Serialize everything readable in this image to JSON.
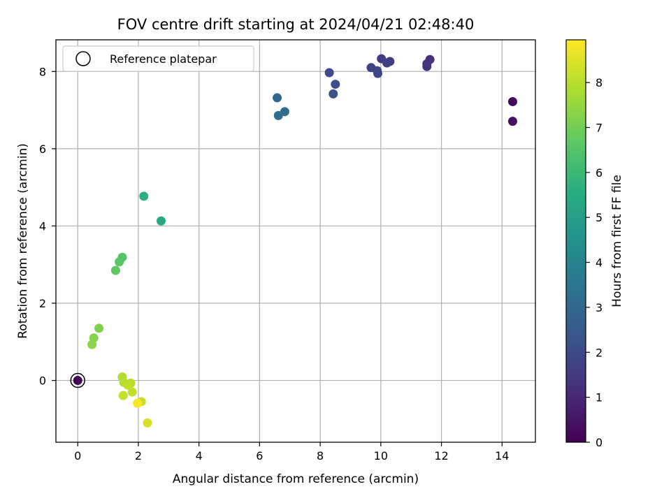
{
  "chart_data": {
    "type": "scatter",
    "title": "FOV centre drift starting at 2024/04/21 02:48:40",
    "xlabel": "Angular distance from reference (arcmin)",
    "ylabel": "Rotation from reference (arcmin)",
    "xlim": [
      -0.72,
      15.1
    ],
    "ylim": [
      -1.6,
      8.82
    ],
    "xticks": [
      0,
      2,
      4,
      6,
      8,
      10,
      12,
      14
    ],
    "yticks": [
      0,
      2,
      4,
      6,
      8
    ],
    "grid": true,
    "legend": {
      "position": "top-left",
      "entries": [
        "Reference platepar"
      ]
    },
    "reference_point": {
      "x": 0,
      "y": 0,
      "label": "Reference platepar"
    },
    "colorbar": {
      "label": "Hours from first FF file",
      "colormap": "viridis",
      "range": [
        0,
        8.95
      ],
      "ticks": [
        0,
        1,
        2,
        3,
        4,
        5,
        6,
        7,
        8
      ]
    },
    "points": [
      {
        "x": 0.0,
        "y": 0.0,
        "c": 0.0
      },
      {
        "x": 14.35,
        "y": 7.22,
        "c": 0.2
      },
      {
        "x": 14.35,
        "y": 6.71,
        "c": 0.4
      },
      {
        "x": 11.62,
        "y": 8.31,
        "c": 1.2
      },
      {
        "x": 11.52,
        "y": 8.2,
        "c": 1.3
      },
      {
        "x": 11.52,
        "y": 8.13,
        "c": 1.4
      },
      {
        "x": 10.02,
        "y": 8.33,
        "c": 1.6
      },
      {
        "x": 10.3,
        "y": 8.26,
        "c": 1.6
      },
      {
        "x": 10.2,
        "y": 8.22,
        "c": 1.7
      },
      {
        "x": 9.68,
        "y": 8.1,
        "c": 1.8
      },
      {
        "x": 9.88,
        "y": 8.02,
        "c": 1.9
      },
      {
        "x": 9.9,
        "y": 7.95,
        "c": 1.95
      },
      {
        "x": 8.3,
        "y": 7.97,
        "c": 2.1
      },
      {
        "x": 8.5,
        "y": 7.67,
        "c": 2.2
      },
      {
        "x": 8.43,
        "y": 7.42,
        "c": 2.3
      },
      {
        "x": 6.58,
        "y": 7.32,
        "c": 3.0
      },
      {
        "x": 6.83,
        "y": 6.96,
        "c": 3.1
      },
      {
        "x": 6.62,
        "y": 6.86,
        "c": 3.2
      },
      {
        "x": 2.18,
        "y": 4.77,
        "c": 5.6
      },
      {
        "x": 2.75,
        "y": 4.13,
        "c": 5.4
      },
      {
        "x": 1.47,
        "y": 3.19,
        "c": 6.5
      },
      {
        "x": 1.37,
        "y": 3.07,
        "c": 6.6
      },
      {
        "x": 1.25,
        "y": 2.85,
        "c": 6.7
      },
      {
        "x": 0.7,
        "y": 1.35,
        "c": 7.2
      },
      {
        "x": 0.53,
        "y": 1.1,
        "c": 7.3
      },
      {
        "x": 0.47,
        "y": 0.93,
        "c": 7.35
      },
      {
        "x": 1.47,
        "y": 0.09,
        "c": 7.9
      },
      {
        "x": 1.52,
        "y": -0.05,
        "c": 8.0
      },
      {
        "x": 1.75,
        "y": -0.07,
        "c": 8.0
      },
      {
        "x": 1.65,
        "y": -0.12,
        "c": 8.1
      },
      {
        "x": 1.8,
        "y": -0.3,
        "c": 8.1
      },
      {
        "x": 1.5,
        "y": -0.39,
        "c": 8.15
      },
      {
        "x": 2.1,
        "y": -0.55,
        "c": 8.2
      },
      {
        "x": 1.97,
        "y": -0.59,
        "c": 8.9
      },
      {
        "x": 2.3,
        "y": -1.1,
        "c": 8.4
      }
    ]
  }
}
